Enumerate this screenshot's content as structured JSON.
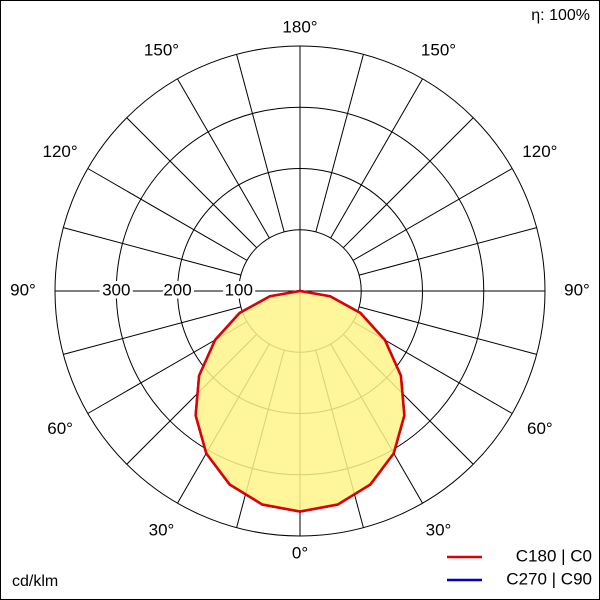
{
  "chart_data": {
    "type": "polar",
    "unit_label": "cd/klm",
    "efficiency_label": "η: 100%",
    "angles": [
      0,
      10,
      20,
      30,
      40,
      50,
      60,
      70,
      80,
      90
    ],
    "series": [
      {
        "name": "C270 | C90",
        "color": "#0000c0",
        "values": [
          360,
          354,
          336,
          306,
          265,
          215,
          160,
          105,
          50,
          0
        ]
      },
      {
        "name": "C180 | C0",
        "color": "#e00000",
        "fill": "#fff58a",
        "values": [
          360,
          354,
          336,
          306,
          265,
          215,
          160,
          105,
          50,
          0
        ]
      }
    ],
    "rlim": [
      0,
      400
    ],
    "rticks": [
      100,
      200,
      300
    ],
    "angle_ticks": [
      {
        "value": 0,
        "label": "0°"
      },
      {
        "value": 30,
        "label": "30°"
      },
      {
        "value": 60,
        "label": "60°"
      },
      {
        "value": 90,
        "label": "90°"
      },
      {
        "value": 120,
        "label": "120°"
      },
      {
        "value": 150,
        "label": "150°"
      },
      {
        "value": 180,
        "label": "180°"
      }
    ],
    "grid": true
  }
}
